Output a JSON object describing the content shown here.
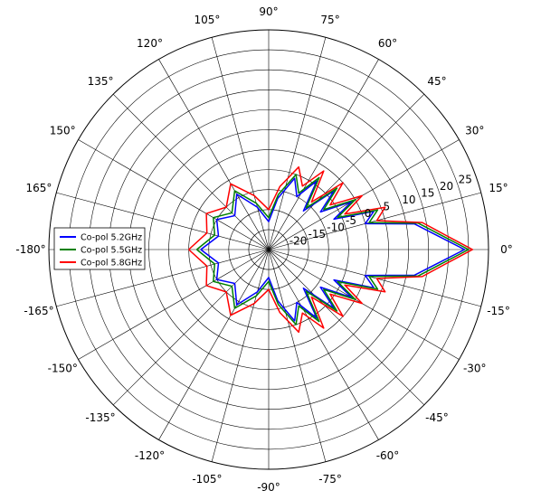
{
  "chart_data": {
    "type": "line",
    "projection": "polar",
    "angle_unit": "degree",
    "angle_ticks": [
      0,
      15,
      30,
      45,
      60,
      75,
      90,
      105,
      120,
      135,
      150,
      165,
      -180,
      -165,
      -150,
      -135,
      -120,
      -105,
      -90,
      -75,
      -60,
      -45,
      -30,
      -15
    ],
    "angle_tick_labels": [
      "0°",
      "15°",
      "30°",
      "45°",
      "60°",
      "75°",
      "90°",
      "105°",
      "120°",
      "135°",
      "150°",
      "165°",
      "-180°",
      "-165°",
      "-150°",
      "-135°",
      "-120°",
      "-105°",
      "-90°",
      "-75°",
      "-60°",
      "-45°",
      "-30°",
      "-15°"
    ],
    "rlim": [
      -25,
      30
    ],
    "r_ticks": [
      -20,
      -15,
      -10,
      -5,
      0,
      5,
      10,
      15,
      20,
      25
    ],
    "r_tick_labels": [
      "-20",
      "-15",
      "-10",
      "-5",
      "0",
      "5",
      "10",
      "15",
      "20",
      "25"
    ],
    "grid": true,
    "legend": "left",
    "series": [
      {
        "name": "Co-pol 5.2GHz",
        "color": "#0000ff",
        "theta": [
          -180,
          -165,
          -150,
          -135,
          -120,
          -105,
          -90,
          -80,
          -70,
          -62,
          -55,
          -48,
          -42,
          -36,
          -30,
          -25,
          -20,
          -15,
          -10,
          -5,
          0,
          5,
          10,
          15,
          20,
          25,
          30,
          36,
          42,
          48,
          55,
          62,
          70,
          80,
          90,
          105,
          120,
          135,
          150,
          165,
          180
        ],
        "r": [
          -8,
          -12,
          -10,
          -13,
          -9,
          -14,
          -18,
          -12,
          -6,
          -10,
          -4,
          -12,
          -3,
          -9,
          -1,
          -7,
          3,
          0,
          12,
          17,
          24,
          17,
          12,
          0,
          3,
          -7,
          -1,
          -9,
          -3,
          -12,
          -4,
          -10,
          -6,
          -12,
          -18,
          -14,
          -9,
          -13,
          -10,
          -12,
          -8
        ]
      },
      {
        "name": "Co-pol 5.5GHz",
        "color": "#008000",
        "theta": [
          -180,
          -165,
          -150,
          -135,
          -120,
          -105,
          -90,
          -80,
          -70,
          -62,
          -55,
          -48,
          -42,
          -36,
          -30,
          -25,
          -20,
          -15,
          -10,
          -5,
          0,
          5,
          10,
          15,
          20,
          25,
          30,
          36,
          42,
          48,
          55,
          62,
          70,
          80,
          90,
          105,
          120,
          135,
          150,
          165,
          180
        ],
        "r": [
          -7,
          -11,
          -9,
          -12,
          -8,
          -13,
          -17,
          -11,
          -5,
          -9,
          -3,
          -11,
          -2,
          -8,
          0,
          -6,
          4,
          1,
          13,
          18,
          25,
          18,
          13,
          1,
          4,
          -6,
          0,
          -8,
          -2,
          -11,
          -3,
          -9,
          -5,
          -11,
          -17,
          -13,
          -8,
          -12,
          -9,
          -11,
          -7
        ]
      },
      {
        "name": "Co-pol 5.8GHz",
        "color": "#ff0000",
        "theta": [
          -180,
          -165,
          -150,
          -135,
          -120,
          -105,
          -90,
          -80,
          -70,
          -62,
          -55,
          -48,
          -42,
          -36,
          -30,
          -25,
          -20,
          -15,
          -10,
          -5,
          0,
          5,
          10,
          15,
          20,
          25,
          30,
          36,
          42,
          48,
          55,
          62,
          70,
          80,
          90,
          105,
          120,
          135,
          150,
          165,
          180
        ],
        "r": [
          -5,
          -9,
          -7,
          -10,
          -6,
          -11,
          -15,
          -9,
          -3,
          -7,
          -1,
          -9,
          0,
          -6,
          2,
          -4,
          6,
          3,
          14,
          19,
          26,
          19,
          14,
          3,
          6,
          -4,
          2,
          -6,
          0,
          -9,
          -1,
          -7,
          -3,
          -9,
          -15,
          -11,
          -6,
          -10,
          -7,
          -9,
          -5
        ]
      }
    ]
  }
}
